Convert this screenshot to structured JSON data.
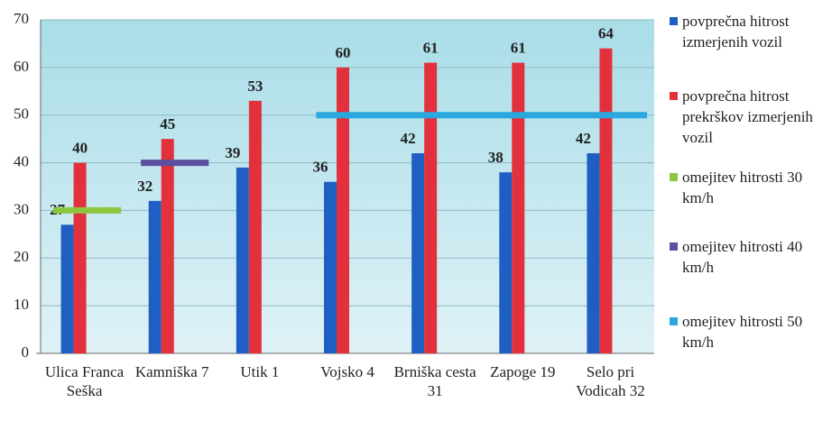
{
  "chart_data": {
    "type": "bar",
    "categories": [
      "Ulica Franca Seška",
      "Kamniška 7",
      "Utik 1",
      "Vojsko 4",
      "Brniška cesta 31",
      "Zapoge 19",
      "Selo pri Vodicah 32"
    ],
    "series": [
      {
        "name": "povprečna hitrost izmerjenih vozil",
        "color": "#1f5fc4",
        "values": [
          27,
          32,
          39,
          36,
          42,
          38,
          42
        ]
      },
      {
        "name": "povprečna hitrost prekrškov izmerjenih vozil",
        "color": "#e2303c",
        "values": [
          40,
          45,
          53,
          60,
          61,
          61,
          64
        ]
      },
      {
        "name": "omejitev hitrosti 30 km/h",
        "color": "#8cc63f",
        "type": "line",
        "values": [
          30,
          null,
          null,
          null,
          null,
          null,
          null
        ]
      },
      {
        "name": "omejitev hitrosti 40 km/h",
        "color": "#5b4fa0",
        "type": "line",
        "values": [
          null,
          40,
          null,
          null,
          null,
          null,
          null
        ]
      },
      {
        "name": "omejitev hitrosti 50 km/h",
        "color": "#2aa7dc",
        "type": "line",
        "values": [
          null,
          null,
          null,
          50,
          50,
          50,
          50
        ]
      }
    ],
    "ylim": [
      0,
      70
    ],
    "yticks": [
      0,
      10,
      20,
      30,
      40,
      50,
      60,
      70
    ],
    "grid": true,
    "legend": "right"
  }
}
